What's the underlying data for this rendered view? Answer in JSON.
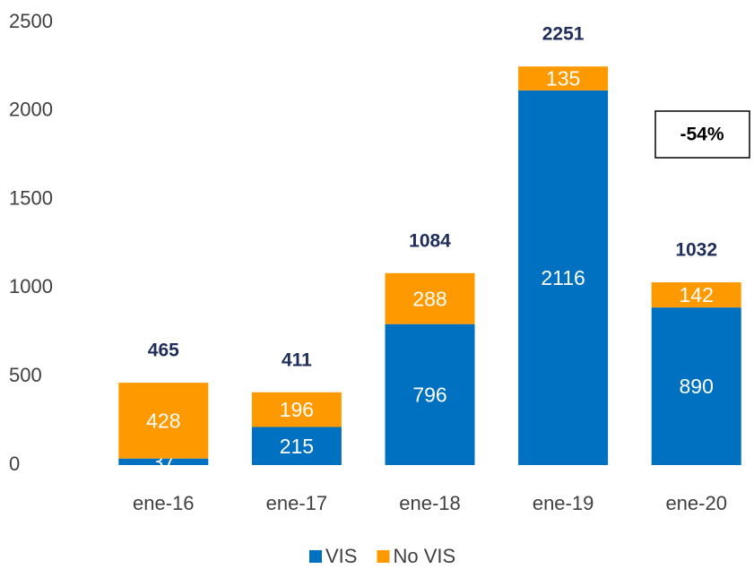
{
  "chart_data": {
    "type": "stacked-bar",
    "categories": [
      "ene-16",
      "ene-17",
      "ene-18",
      "ene-19",
      "ene-20"
    ],
    "series": [
      {
        "name": "VIS",
        "color": "#0070c0",
        "values": [
          37,
          215,
          796,
          2116,
          890
        ]
      },
      {
        "name": "No VIS",
        "color": "#ff9900",
        "values": [
          428,
          196,
          288,
          135,
          142
        ]
      }
    ],
    "totals": [
      465,
      411,
      1084,
      2251,
      1032
    ],
    "annotation": "-54%",
    "ylim": [
      0,
      2500
    ],
    "yticks": [
      0,
      500,
      1000,
      1500,
      2000,
      2500
    ],
    "grid": false,
    "legend": "bottom"
  }
}
